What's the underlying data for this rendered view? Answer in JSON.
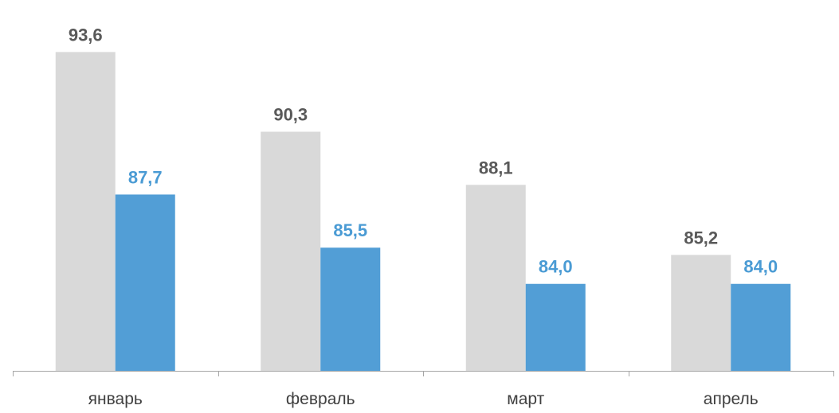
{
  "chart_data": {
    "type": "bar",
    "categories": [
      "январь",
      "февраль",
      "март",
      "апрель"
    ],
    "series": [
      {
        "values": [
          93.6,
          90.3,
          88.1,
          85.2
        ],
        "labels": [
          "93,6",
          "90,3",
          "88,1",
          "85,2"
        ],
        "color": "#d9d9d9",
        "label_color": "#595959"
      },
      {
        "values": [
          87.7,
          85.5,
          84.0,
          84.0
        ],
        "labels": [
          "87,7",
          "85,5",
          "84,0",
          "84,0"
        ],
        "color": "#529ed6",
        "label_color": "#4a9bd4"
      }
    ],
    "ylim": [
      80.4,
      94.05
    ],
    "grid": false,
    "legend": "none",
    "axis_color": "#a6a6a6"
  }
}
